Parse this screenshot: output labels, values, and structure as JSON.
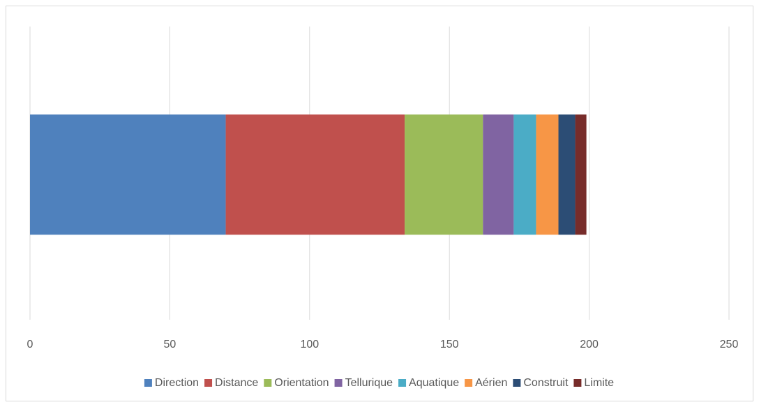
{
  "chart_data": {
    "type": "stacked_bar_horizontal",
    "categories": [
      null
    ],
    "series": [
      {
        "name": "Direction",
        "color": "#4f81bd",
        "values": [
          70
        ]
      },
      {
        "name": "Distance",
        "color": "#c0504d",
        "values": [
          64
        ]
      },
      {
        "name": "Orientation",
        "color": "#9bbb59",
        "values": [
          28
        ]
      },
      {
        "name": "Tellurique",
        "color": "#8064a2",
        "values": [
          11
        ]
      },
      {
        "name": "Aquatique",
        "color": "#4bacc6",
        "values": [
          8
        ]
      },
      {
        "name": "Aérien",
        "color": "#f79646",
        "values": [
          8
        ]
      },
      {
        "name": "Construit",
        "color": "#2c4d75",
        "values": [
          6
        ]
      },
      {
        "name": "Limite",
        "color": "#772c2a",
        "values": [
          4
        ]
      }
    ],
    "xlim": [
      0,
      250
    ],
    "xticks": [
      0,
      50,
      100,
      150,
      200,
      250
    ],
    "grid": true,
    "legend": "bottom"
  }
}
